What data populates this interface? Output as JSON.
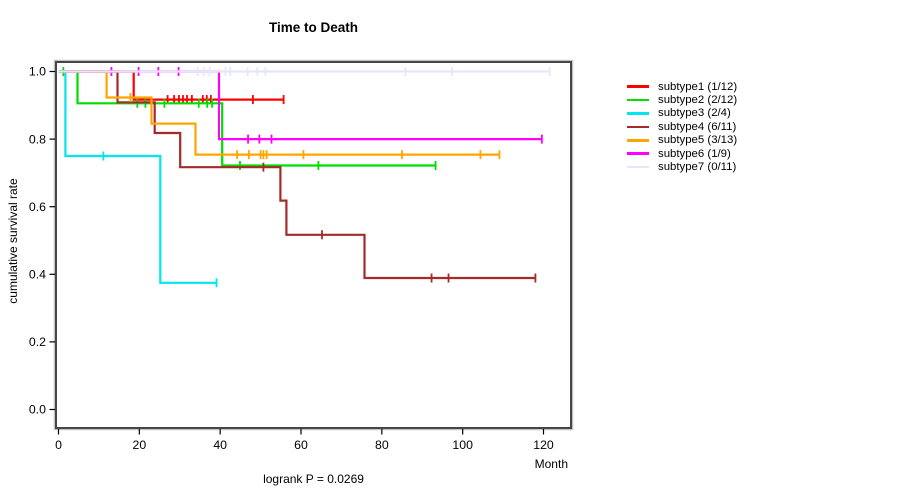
{
  "title": "Time to Death",
  "ylabel": "cumulative survival rate",
  "xlabel": "Month",
  "footnote": "logrank P = 0.0269",
  "chart_data": {
    "type": "line",
    "variant": "kaplan-meier-step",
    "title": "Time to Death",
    "xlabel": "Month",
    "ylabel": "cumulative survival rate",
    "xlim": [
      0,
      120
    ],
    "xticks": [
      0,
      20,
      40,
      60,
      80,
      100,
      120
    ],
    "ylim": [
      0.0,
      1.0
    ],
    "yticks": [
      "0.0",
      "0.2",
      "0.4",
      "0.6",
      "0.8",
      "1.0"
    ],
    "grid": false,
    "legend_position": "right-outside",
    "annotation": "logrank P = 0.0269",
    "series": [
      {
        "name": "subtype1",
        "label": "subtype1 (1/12)",
        "color": "#ff0000",
        "end": 55.7,
        "steps": [
          [
            0,
            1.0
          ],
          [
            18.6,
            0.917
          ]
        ],
        "censors": [
          [
            27,
            0.917
          ],
          [
            28.6,
            0.917
          ],
          [
            29.8,
            0.917
          ],
          [
            30.8,
            0.917
          ],
          [
            31.8,
            0.917
          ],
          [
            33,
            0.917
          ],
          [
            35.7,
            0.917
          ],
          [
            36.7,
            0.917
          ],
          [
            37.7,
            0.917
          ],
          [
            48.1,
            0.917
          ],
          [
            55.7,
            0.917
          ]
        ]
      },
      {
        "name": "subtype2",
        "label": "subtype2 (2/12)",
        "color": "#00dd00",
        "end": 93.3,
        "steps": [
          [
            0,
            1.0
          ],
          [
            4.7,
            0.906
          ],
          [
            40.5,
            0.722
          ]
        ],
        "censors": [
          [
            1.2,
            1.0
          ],
          [
            19.5,
            0.906
          ],
          [
            21.5,
            0.906
          ],
          [
            26.2,
            0.906
          ],
          [
            34.7,
            0.906
          ],
          [
            36.8,
            0.906
          ],
          [
            38,
            0.906
          ],
          [
            44.9,
            0.722
          ],
          [
            64.3,
            0.722
          ],
          [
            93.3,
            0.722
          ]
        ]
      },
      {
        "name": "subtype3",
        "label": "subtype3 (2/4)",
        "color": "#00e5ee",
        "end": 39.1,
        "steps": [
          [
            0,
            1.0
          ],
          [
            1.7,
            0.75
          ],
          [
            25.2,
            0.375
          ]
        ],
        "censors": [
          [
            11.1,
            0.75
          ],
          [
            39.1,
            0.375
          ]
        ]
      },
      {
        "name": "subtype4",
        "label": "subtype4 (6/11)",
        "color": "#a52a2a",
        "end": 118,
        "steps": [
          [
            0,
            1.0
          ],
          [
            14.6,
            0.909
          ],
          [
            23.8,
            0.818
          ],
          [
            30.1,
            0.717
          ],
          [
            54.9,
            0.618
          ],
          [
            56.4,
            0.517
          ],
          [
            75.7,
            0.389
          ]
        ],
        "censors": [
          [
            50.7,
            0.717
          ],
          [
            65.2,
            0.517
          ],
          [
            92.3,
            0.389
          ],
          [
            96.5,
            0.389
          ],
          [
            118,
            0.389
          ]
        ]
      },
      {
        "name": "subtype5",
        "label": "subtype5 (3/13)",
        "color": "#ffa500",
        "end": 109.1,
        "steps": [
          [
            0,
            1.0
          ],
          [
            11.9,
            0.923
          ],
          [
            23.0,
            0.846
          ],
          [
            33.9,
            0.754
          ]
        ],
        "censors": [
          [
            17.8,
            0.923
          ],
          [
            44.2,
            0.754
          ],
          [
            47.1,
            0.754
          ],
          [
            50,
            0.754
          ],
          [
            50.7,
            0.754
          ],
          [
            51.5,
            0.754
          ],
          [
            60.6,
            0.754
          ],
          [
            85,
            0.754
          ],
          [
            104.4,
            0.754
          ],
          [
            109.1,
            0.754
          ]
        ]
      },
      {
        "name": "subtype6",
        "label": "subtype6 (1/9)",
        "color": "#ff00ff",
        "end": 119.6,
        "steps": [
          [
            0,
            1.0
          ],
          [
            39.7,
            0.8
          ]
        ],
        "censors": [
          [
            13.1,
            1.0
          ],
          [
            19.8,
            1.0
          ],
          [
            24.7,
            1.0
          ],
          [
            29.7,
            1.0
          ],
          [
            46.9,
            0.8
          ],
          [
            49.7,
            0.8
          ],
          [
            52.7,
            0.8
          ],
          [
            119.6,
            0.8
          ]
        ]
      },
      {
        "name": "subtype7",
        "label": "subtype7 (0/11)",
        "color": "#e6e6fa",
        "end": 121.5,
        "steps": [
          [
            0,
            1.0
          ]
        ],
        "censors": [
          [
            34.4,
            1.0
          ],
          [
            35.9,
            1.0
          ],
          [
            37.4,
            1.0
          ],
          [
            41.3,
            1.0
          ],
          [
            42.5,
            1.0
          ],
          [
            46.8,
            1.0
          ],
          [
            49.2,
            1.0
          ],
          [
            51.2,
            1.0
          ],
          [
            85.8,
            1.0
          ],
          [
            97.4,
            1.0
          ],
          [
            121.5,
            1.0
          ]
        ]
      }
    ]
  }
}
